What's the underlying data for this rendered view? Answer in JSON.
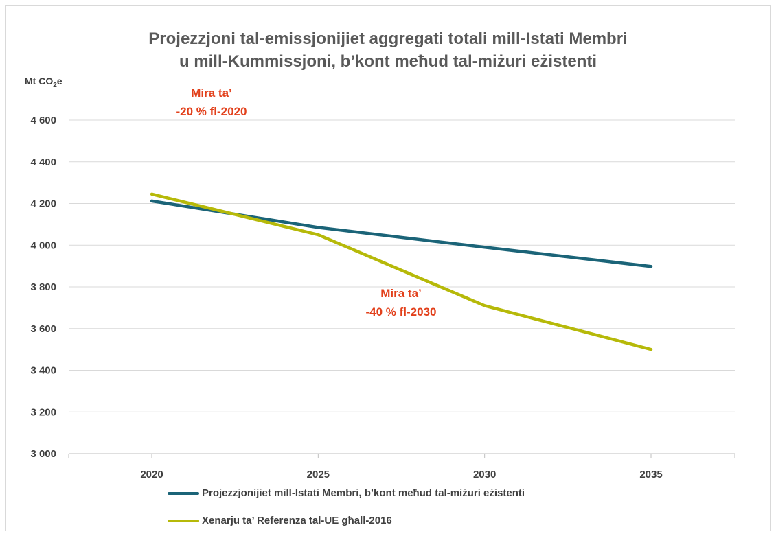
{
  "chart_data": {
    "type": "line",
    "title_lines": [
      "Projezzjoni tal-emissjonijiet aggregati totali mill-Istati Membri",
      "u mill-Kummissjoni, b’kont meħud tal-miżuri eżistenti"
    ],
    "ylabel": "Mt CO₂e",
    "ylabel_main": "Mt CO",
    "ylabel_sub": "2",
    "ylabel_tail": "e",
    "x": [
      2020,
      2025,
      2030,
      2035
    ],
    "x_tick_labels": [
      "2020",
      "2025",
      "2030",
      "2035"
    ],
    "ylim": [
      3000,
      4600
    ],
    "y_ticks": [
      3000,
      3200,
      3400,
      3600,
      3800,
      4000,
      4200,
      4400,
      4600
    ],
    "y_tick_labels": [
      "3 000",
      "3 200",
      "3 400",
      "3 600",
      "3 800",
      "4 000",
      "4 200",
      "4 400",
      "4 600"
    ],
    "grid": true,
    "legend_position": "bottom",
    "series": [
      {
        "name": "Projezzjonijiet mill-Istati Membri,  b’kont meħud tal-miżuri eżistenti",
        "color": "#1b6478",
        "values": [
          4212,
          4085,
          3990,
          3898
        ]
      },
      {
        "name": "Xenarju ta’ Referenza tal-UE għall-2016",
        "color": "#b6b909",
        "values": [
          4245,
          4050,
          3710,
          3500
        ]
      }
    ],
    "annotations": [
      {
        "lines": [
          "Mira ta’",
          "-20 % fl-2020"
        ],
        "color": "#e2401b"
      },
      {
        "lines": [
          "Mira ta’",
          "-40 % fl-2030"
        ],
        "color": "#e2401b"
      }
    ]
  }
}
